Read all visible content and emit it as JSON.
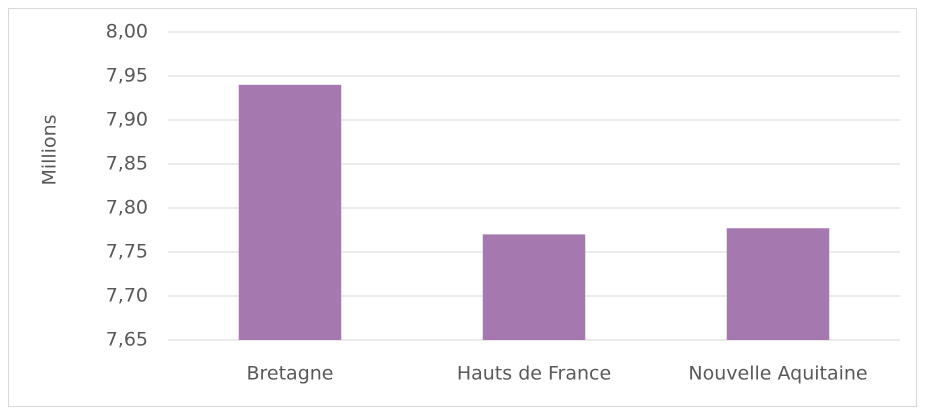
{
  "chart_data": {
    "type": "bar",
    "y_label": "Millions",
    "categories": [
      "Bretagne",
      "Hauts de France",
      "Nouvelle Aquitaine"
    ],
    "values": [
      7.94,
      7.77,
      7.777
    ],
    "color": "#a678b0",
    "ylim": [
      7.65,
      8.0
    ],
    "yticks": [
      {
        "value": 7.65,
        "label": "7,65"
      },
      {
        "value": 7.7,
        "label": "7,70"
      },
      {
        "value": 7.75,
        "label": "7,75"
      },
      {
        "value": 7.8,
        "label": "7,80"
      },
      {
        "value": 7.85,
        "label": "7,85"
      },
      {
        "value": 7.9,
        "label": "7,90"
      },
      {
        "value": 7.95,
        "label": "7,95"
      },
      {
        "value": 8.0,
        "label": "8,00"
      }
    ],
    "grid": true
  }
}
